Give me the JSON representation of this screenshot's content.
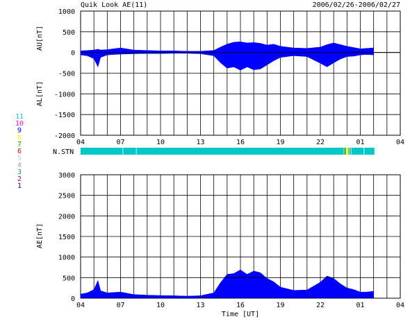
{
  "header": {
    "title": "Quik Look AE(11)",
    "date_range": "2006/02/26-2006/02/27"
  },
  "colors": {
    "fill": "#0000ff",
    "grid": "#000000",
    "background": "#ffffff"
  },
  "station_legend": [
    {
      "label": "11",
      "color": "#00c8c8"
    },
    {
      "label": "10",
      "color": "#ff00ff"
    },
    {
      "label": "9",
      "color": "#0000ff"
    },
    {
      "label": "8",
      "color": "#ffff00"
    },
    {
      "label": "7",
      "color": "#00b000"
    },
    {
      "label": "6",
      "color": "#ff0000"
    },
    {
      "label": "5",
      "color": "#d0d0d0"
    },
    {
      "label": "4",
      "color": "#a0a0a0"
    },
    {
      "label": "3",
      "color": "#00a0a0"
    },
    {
      "label": "2",
      "color": "#a000a0"
    },
    {
      "label": "1",
      "color": "#0000a0"
    }
  ],
  "chart_data": [
    {
      "type": "area",
      "title": "Quik Look AE(11)",
      "ylabel_top": "AU[nT]",
      "ylabel_bottom": "AL[nT]",
      "xlim_hours": [
        4,
        28
      ],
      "ylim": [
        -2000,
        1000
      ],
      "yticks": [
        -2000,
        -1500,
        -1000,
        -500,
        0,
        500,
        1000
      ],
      "xtick_labels": [
        "04",
        "07",
        "10",
        "13",
        "16",
        "19",
        "22",
        "01",
        "04"
      ],
      "grid": true,
      "series": [
        {
          "name": "AU",
          "x": [
            4,
            4.5,
            5,
            5.3,
            5.5,
            6,
            6.5,
            7,
            8,
            9,
            10,
            11,
            12,
            13,
            14,
            14.5,
            15,
            15.5,
            16,
            16.5,
            17,
            17.5,
            18,
            18.5,
            19,
            20,
            21,
            22,
            22.5,
            23,
            23.5,
            24,
            24.5,
            25,
            25.5,
            26
          ],
          "values": [
            40,
            50,
            60,
            80,
            60,
            70,
            90,
            110,
            60,
            50,
            40,
            40,
            30,
            30,
            50,
            130,
            200,
            250,
            260,
            230,
            240,
            220,
            180,
            200,
            150,
            110,
            100,
            130,
            190,
            230,
            190,
            150,
            120,
            90,
            100,
            110
          ]
        },
        {
          "name": "AL",
          "x": [
            4,
            4.5,
            5,
            5.3,
            5.5,
            6,
            6.5,
            7,
            8,
            9,
            10,
            11,
            12,
            13,
            14,
            14.5,
            15,
            15.5,
            16,
            16.5,
            17,
            17.5,
            18,
            18.5,
            19,
            20,
            21,
            22,
            22.5,
            23,
            23.5,
            24,
            24.5,
            25,
            25.5,
            26
          ],
          "values": [
            -60,
            -80,
            -150,
            -350,
            -120,
            -60,
            -50,
            -40,
            -30,
            -25,
            -25,
            -20,
            -20,
            -30,
            -80,
            -250,
            -380,
            -350,
            -430,
            -350,
            -420,
            -400,
            -300,
            -200,
            -120,
            -80,
            -100,
            -260,
            -350,
            -250,
            -160,
            -100,
            -90,
            -60,
            -50,
            -60
          ]
        }
      ]
    },
    {
      "type": "bar",
      "title": "N.STN",
      "xlim_hours": [
        4,
        28
      ],
      "segments": [
        {
          "from": 4.0,
          "to": 7.2,
          "stations": 11
        },
        {
          "from": 7.2,
          "to": 8.2,
          "stations": 11
        },
        {
          "from": 8.2,
          "to": 23.8,
          "stations": 11
        },
        {
          "from": 23.8,
          "to": 23.95,
          "stations": 7
        },
        {
          "from": 23.95,
          "to": 24.1,
          "stations": 8
        },
        {
          "from": 24.1,
          "to": 24.2,
          "stations": 7
        },
        {
          "from": 24.2,
          "to": 24.35,
          "stations": 11
        },
        {
          "from": 24.35,
          "to": 25.3,
          "stations": 11
        },
        {
          "from": 25.3,
          "to": 26.1,
          "stations": 11
        }
      ]
    },
    {
      "type": "area",
      "ylabel": "AE[nT]",
      "xlabel": "Time [UT]",
      "xlim_hours": [
        4,
        28
      ],
      "ylim": [
        0,
        3000
      ],
      "yticks": [
        0,
        500,
        1000,
        1500,
        2000,
        2500,
        3000
      ],
      "xtick_labels": [
        "04",
        "07",
        "10",
        "13",
        "16",
        "19",
        "22",
        "01",
        "04"
      ],
      "grid": true,
      "series": [
        {
          "name": "AE",
          "x": [
            4,
            4.5,
            5,
            5.3,
            5.5,
            6,
            6.5,
            7,
            8,
            9,
            10,
            11,
            12,
            13,
            14,
            14.5,
            15,
            15.5,
            16,
            16.5,
            17,
            17.5,
            18,
            18.5,
            19,
            20,
            21,
            22,
            22.5,
            23,
            23.5,
            24,
            24.5,
            25,
            25.5,
            26
          ],
          "values": [
            100,
            130,
            210,
            430,
            180,
            130,
            140,
            150,
            90,
            75,
            65,
            60,
            50,
            60,
            130,
            380,
            580,
            600,
            690,
            580,
            660,
            620,
            480,
            400,
            270,
            190,
            200,
            390,
            540,
            480,
            350,
            250,
            210,
            150,
            150,
            170
          ]
        }
      ]
    }
  ]
}
